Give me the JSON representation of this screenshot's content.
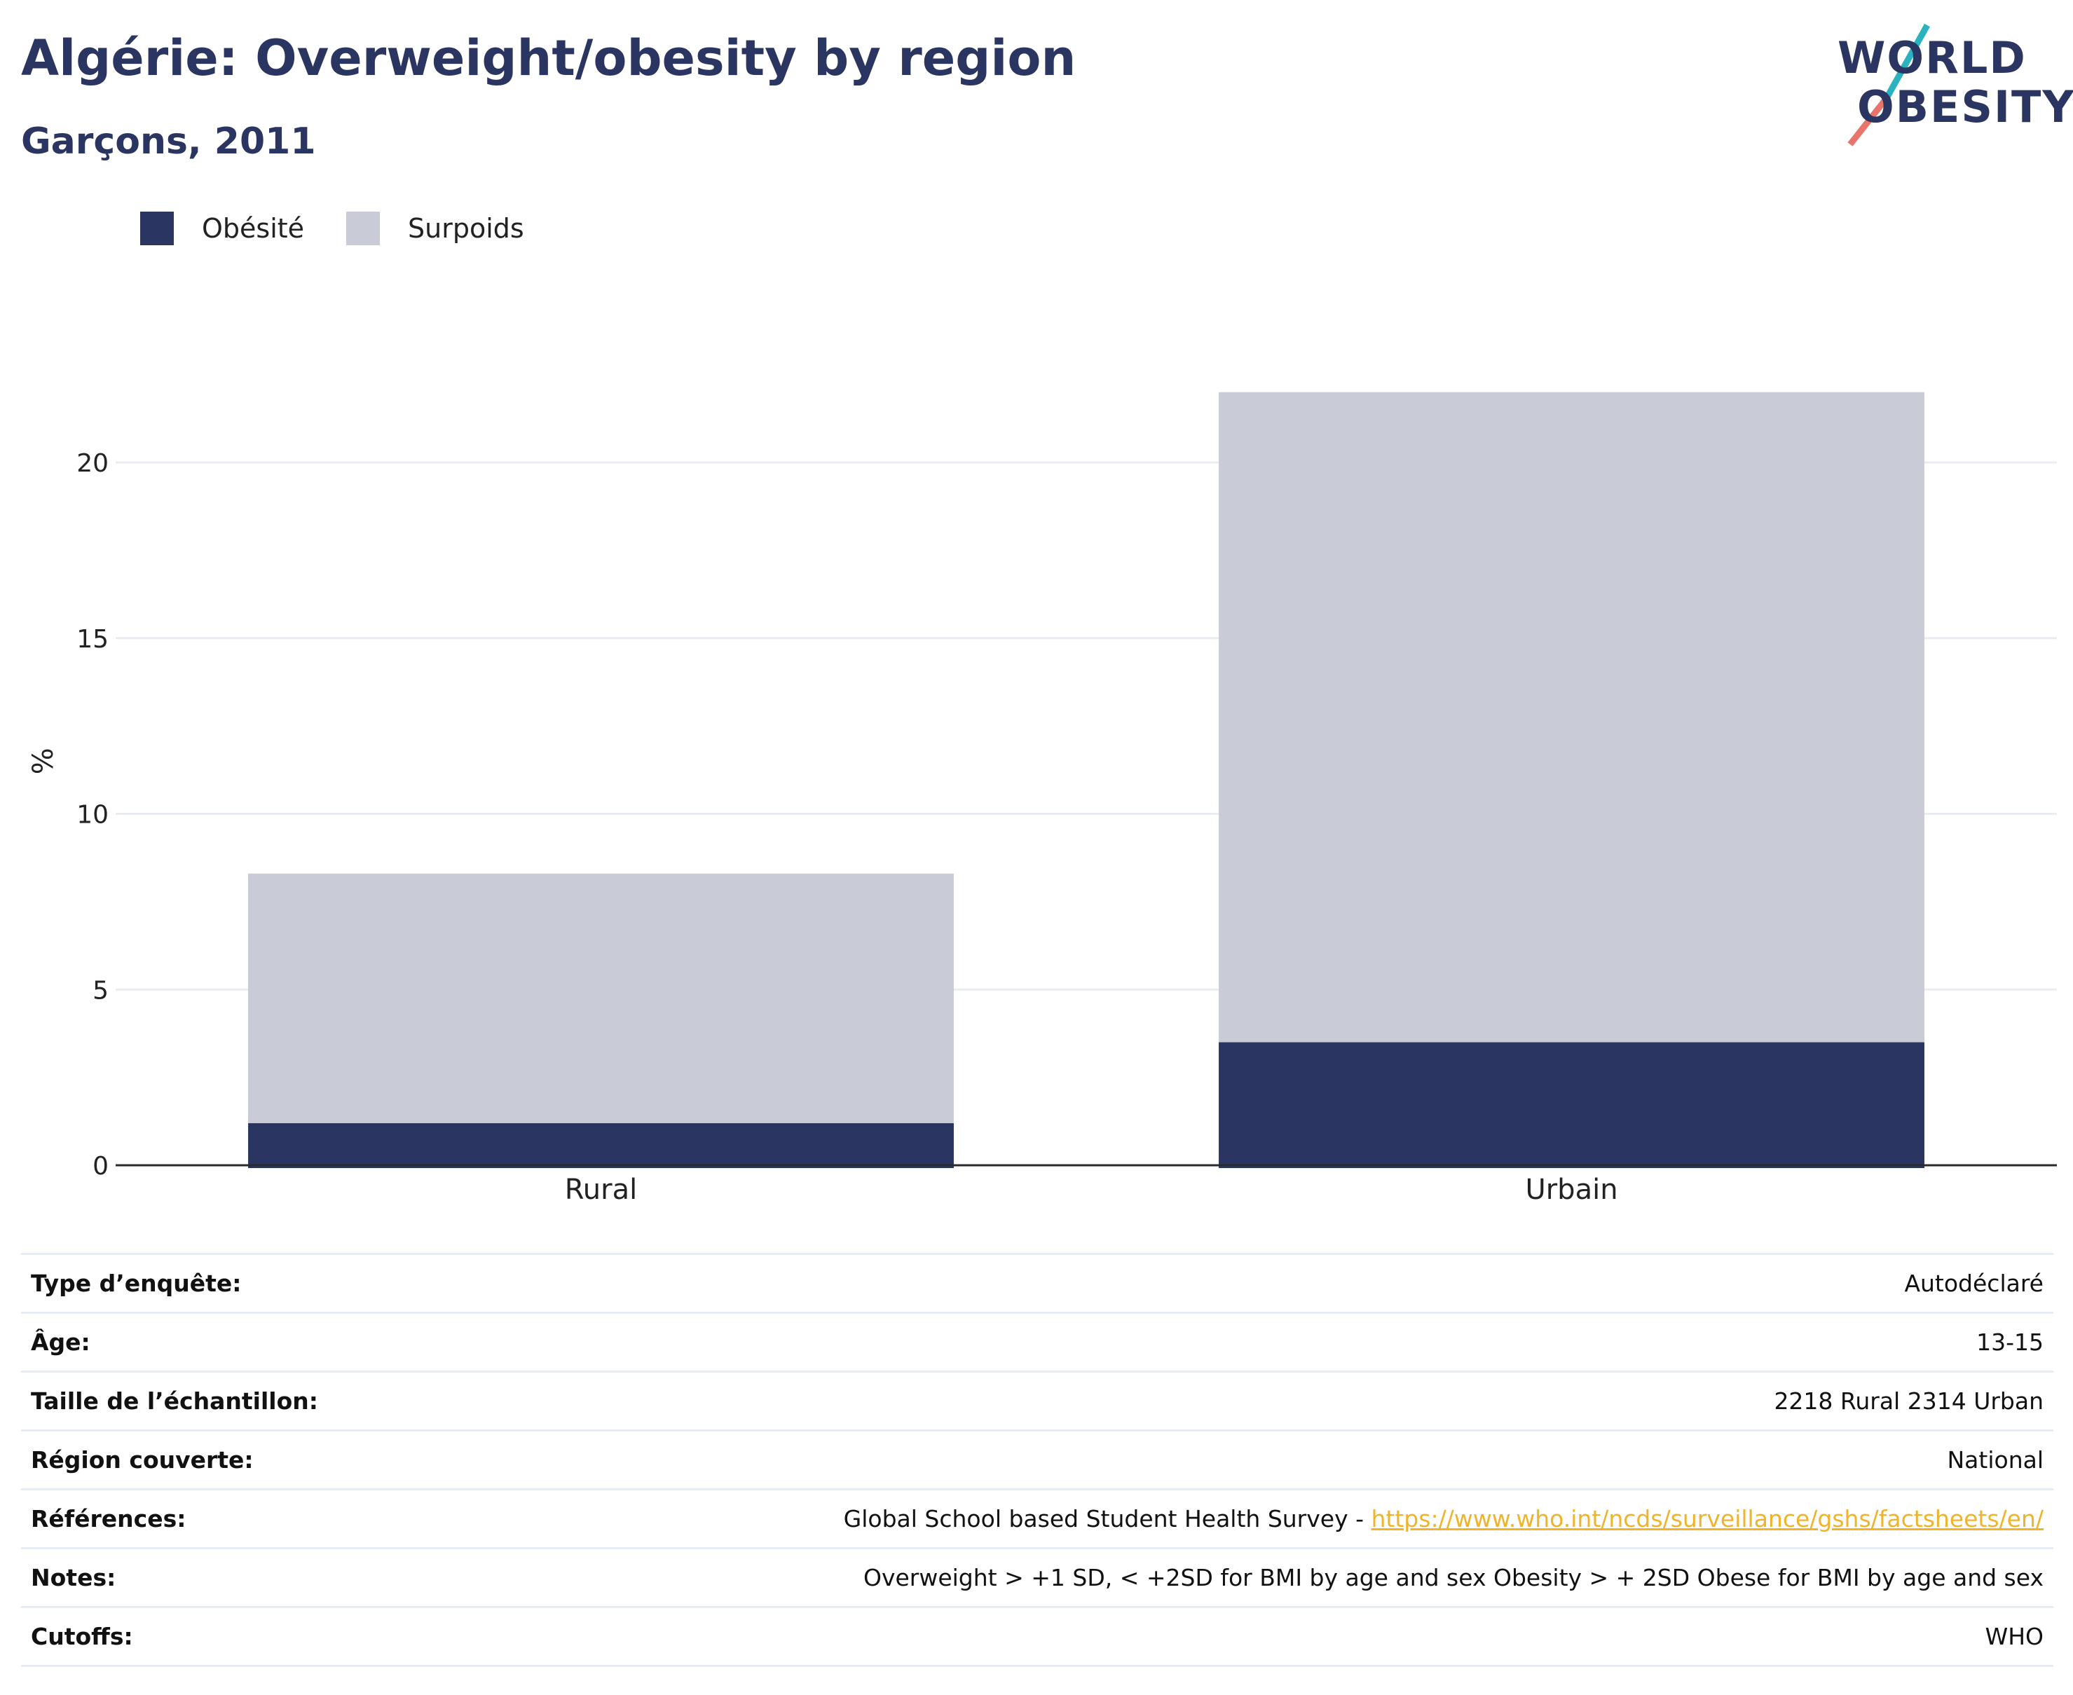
{
  "header": {
    "title": "Algérie: Overweight/obesity by region",
    "subtitle": "Garçons, 2011"
  },
  "logo": {
    "line1": "WORLD",
    "line2": "OBESITY",
    "colors": [
      "#2a3561",
      "#2ab3bf",
      "#e9756a"
    ]
  },
  "colors": {
    "obesity": "#2a3561",
    "overweight": "#c9cbd7",
    "grid": "#e8ecf3",
    "axis": "#2a2a2a",
    "link": "#f0b32c"
  },
  "chart_data": {
    "type": "bar",
    "stacked": true,
    "categories": [
      "Rural",
      "Urbain"
    ],
    "series": [
      {
        "name": "Obésité",
        "values": [
          1.2,
          3.5
        ],
        "color": "#2a3561"
      },
      {
        "name": "Surpoids",
        "values": [
          7.1,
          18.5
        ],
        "color": "#c9cbd7"
      }
    ],
    "ylabel": "%",
    "xlabel": "",
    "ylim": [
      0,
      23.5
    ],
    "yticks": [
      0,
      5,
      10,
      15,
      20
    ],
    "grid": true,
    "legend": "top-left"
  },
  "info": [
    {
      "label": "Type d’enquête:",
      "value": "Autodéclaré"
    },
    {
      "label": "Âge:",
      "value": "13-15"
    },
    {
      "label": "Taille de l’échantillon:",
      "value": "2218 Rural 2314 Urban"
    },
    {
      "label": "Région couverte:",
      "value": "National"
    },
    {
      "label": "Références:",
      "value": "Global School based Student Health Survey - ",
      "link": "https://www.who.int/ncds/surveillance/gshs/factsheets/en/"
    },
    {
      "label": "Notes:",
      "value": "Overweight > +1 SD, < +2SD for BMI by age and sex Obesity > + 2SD Obese for BMI by age and sex"
    },
    {
      "label": "Cutoffs:",
      "value": "WHO"
    }
  ]
}
